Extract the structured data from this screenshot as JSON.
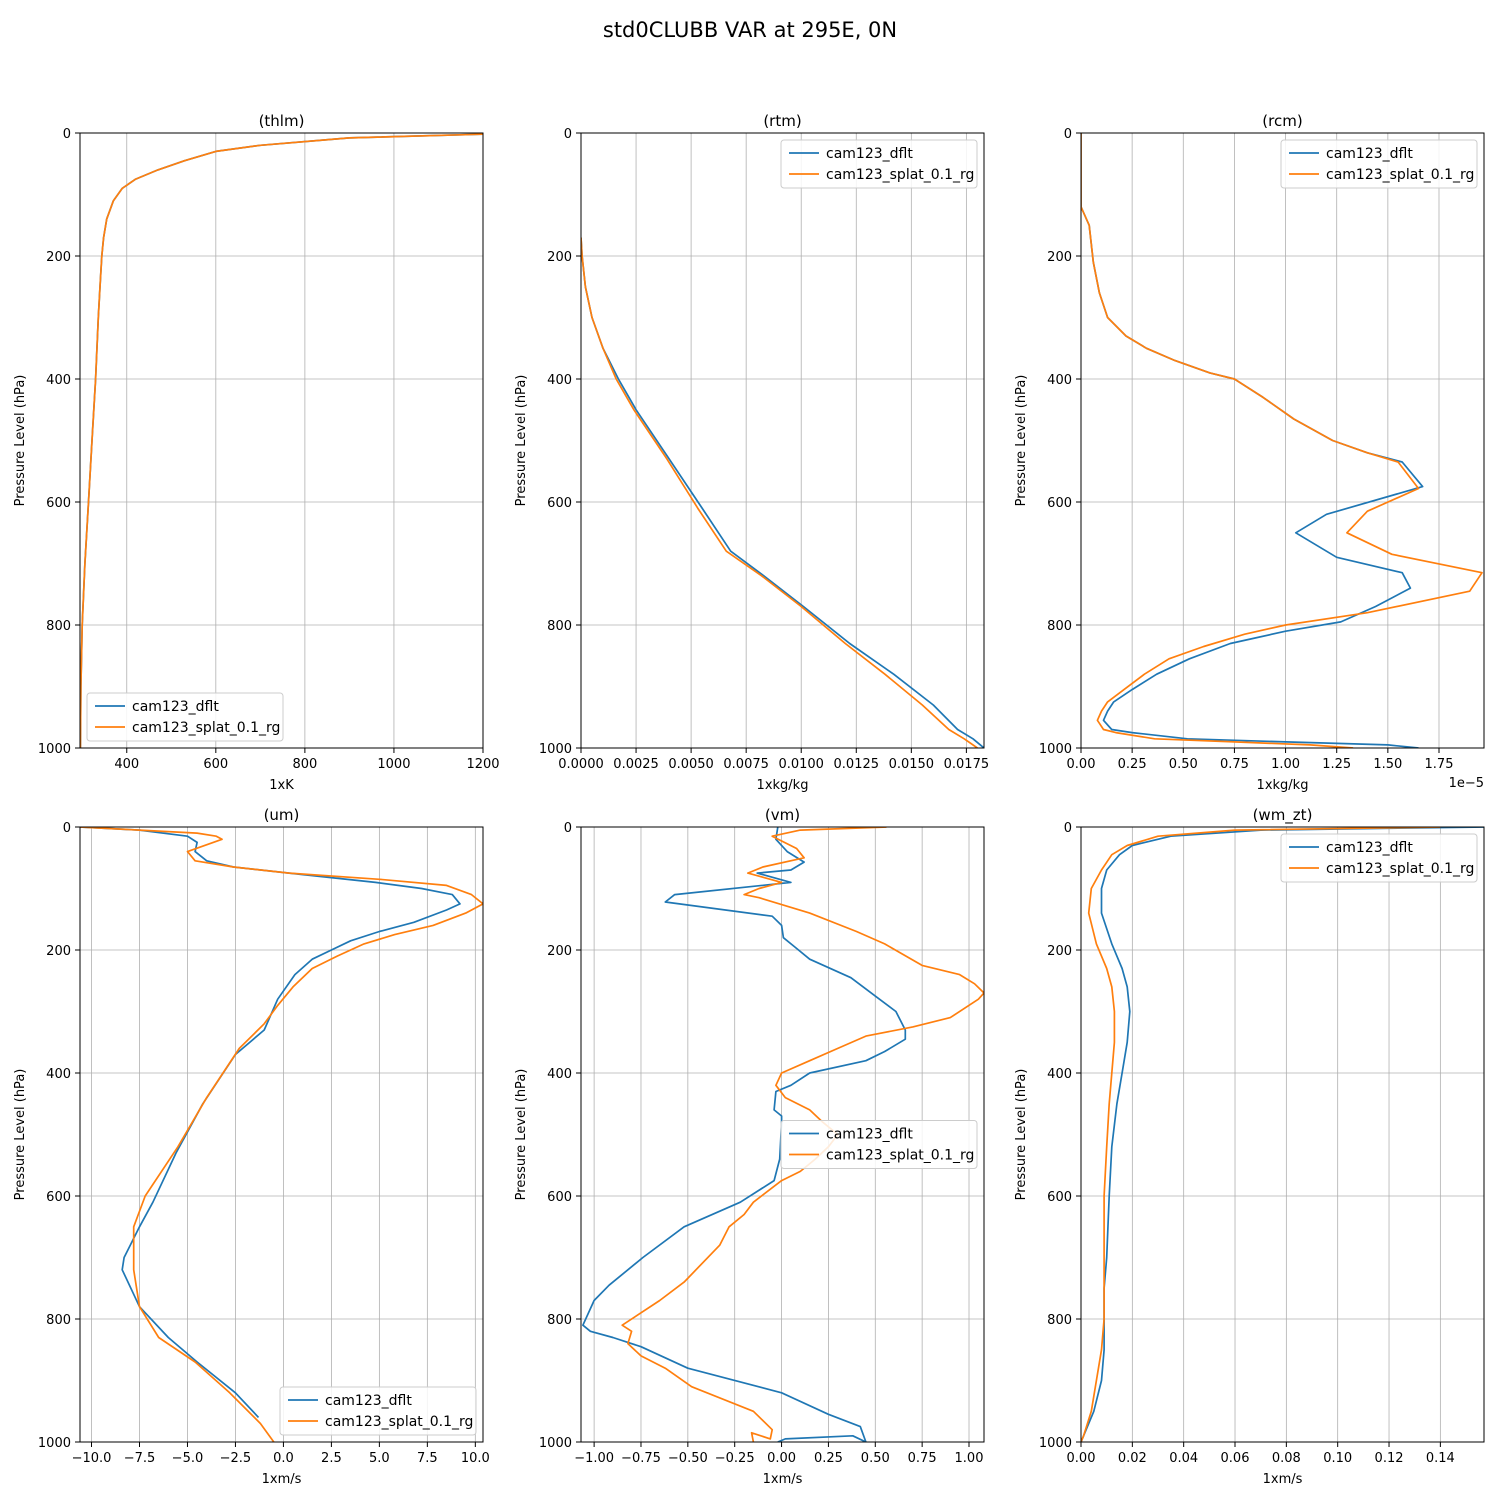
{
  "figure_title": "std0CLUBB VAR at 295E, 0N",
  "colors": {
    "cam123_dflt": "#1f77b4",
    "cam123_splat_0.1_rg": "#ff7f0e"
  },
  "chart_data": [
    {
      "type": "line",
      "title": "(thlm)",
      "xlabel": "1xK",
      "ylabel": "Pressure Level (hPa)",
      "xlim": [
        295,
        1200
      ],
      "ylim": [
        1000,
        0
      ],
      "xticks": [
        400,
        600,
        800,
        1000,
        1200
      ],
      "xtick_labels": [
        "400",
        "600",
        "800",
        "1000",
        "1200"
      ],
      "yticks": [
        0,
        200,
        400,
        600,
        800,
        1000
      ],
      "ytick_labels": [
        "0",
        "200",
        "400",
        "600",
        "800",
        "1000"
      ],
      "offset_text": "",
      "grid": true,
      "legend_loc": "lower-left",
      "series": [
        {
          "name": "cam123_dflt",
          "x": [
            1200,
            900,
            700,
            600,
            530,
            470,
            420,
            390,
            370,
            355,
            348,
            344,
            340,
            336,
            330,
            322,
            314,
            306,
            300,
            297,
            296
          ],
          "y": [
            2,
            8,
            20,
            30,
            45,
            60,
            75,
            90,
            110,
            140,
            170,
            200,
            250,
            300,
            400,
            500,
            600,
            700,
            800,
            900,
            1000
          ]
        },
        {
          "name": "cam123_splat_0.1_rg",
          "x": [
            1200,
            900,
            700,
            600,
            530,
            470,
            420,
            390,
            370,
            355,
            348,
            344,
            340,
            336,
            330,
            322,
            314,
            306,
            300,
            297,
            296
          ],
          "y": [
            2,
            8,
            20,
            30,
            45,
            60,
            75,
            90,
            110,
            140,
            170,
            200,
            250,
            300,
            400,
            500,
            600,
            700,
            800,
            900,
            1000
          ]
        }
      ]
    },
    {
      "type": "line",
      "title": "(rtm)",
      "xlabel": "1xkg/kg",
      "ylabel": "Pressure Level (hPa)",
      "xlim": [
        0,
        0.0183
      ],
      "ylim": [
        1000,
        0
      ],
      "xticks": [
        0,
        0.0025,
        0.005,
        0.0075,
        0.01,
        0.0125,
        0.015,
        0.0175
      ],
      "xtick_labels": [
        "0.0000",
        "0.0025",
        "0.0050",
        "0.0075",
        "0.0100",
        "0.0125",
        "0.0150",
        "0.0175"
      ],
      "yticks": [
        0,
        200,
        400,
        600,
        800,
        1000
      ],
      "ytick_labels": [
        "0",
        "200",
        "400",
        "600",
        "800",
        "1000"
      ],
      "offset_text": "",
      "grid": true,
      "legend_loc": "upper-right",
      "series": [
        {
          "name": "cam123_dflt",
          "x": [
            0.0,
            5e-05,
            0.0002,
            0.0005,
            0.001,
            0.0017,
            0.0025,
            0.004,
            0.0055,
            0.0068,
            0.0083,
            0.0101,
            0.0122,
            0.0142,
            0.016,
            0.0171,
            0.0178,
            0.0183
          ],
          "y": [
            170,
            200,
            250,
            300,
            350,
            400,
            450,
            530,
            610,
            680,
            720,
            770,
            830,
            880,
            930,
            970,
            985,
            1000
          ]
        },
        {
          "name": "cam123_splat_0.1_rg",
          "x": [
            0.0,
            5e-05,
            0.0002,
            0.0005,
            0.001,
            0.0016,
            0.0024,
            0.0039,
            0.0053,
            0.0066,
            0.0082,
            0.01,
            0.012,
            0.0138,
            0.0155,
            0.0167,
            0.0174,
            0.018
          ],
          "y": [
            170,
            200,
            250,
            300,
            350,
            400,
            450,
            530,
            610,
            680,
            720,
            770,
            830,
            880,
            930,
            970,
            985,
            1000
          ]
        }
      ]
    },
    {
      "type": "line",
      "title": "(rcm)",
      "xlabel": "1xkg/kg",
      "ylabel": "Pressure Level (hPa)",
      "xlim": [
        0,
        1.97e-05
      ],
      "ylim": [
        1000,
        0
      ],
      "xticks": [
        0,
        2.5e-06,
        5e-06,
        7.5e-06,
        1e-05,
        1.25e-05,
        1.5e-05,
        1.75e-05
      ],
      "xtick_labels": [
        "0.00",
        "0.25",
        "0.50",
        "0.75",
        "1.00",
        "1.25",
        "1.50",
        "1.75"
      ],
      "yticks": [
        0,
        200,
        400,
        600,
        800,
        1000
      ],
      "ytick_labels": [
        "0",
        "200",
        "400",
        "600",
        "800",
        "1000"
      ],
      "offset_text": "1e−5",
      "grid": true,
      "legend_loc": "upper-right",
      "series": [
        {
          "name": "cam123_dflt",
          "x": [
            0,
            0,
            4e-07,
            6e-07,
            9e-07,
            1.3e-06,
            2.2e-06,
            3.2e-06,
            4.6e-06,
            6.3e-06,
            7.5e-06,
            8.9e-06,
            1.04e-05,
            1.23e-05,
            1.4e-05,
            1.57e-05,
            1.67e-05,
            1.2e-05,
            1.05e-05,
            1.25e-05,
            1.57e-05,
            1.61e-05,
            1.44e-05,
            1.27e-05,
            1e-05,
            7.3e-06,
            5.3e-06,
            3.7e-06,
            2.5e-06,
            1.6e-06,
            1.3e-06,
            1.1e-06,
            1.5e-06,
            2.5e-06,
            5.2e-06,
            1e-05,
            1.5e-05,
            1.65e-05
          ],
          "y": [
            0,
            120,
            150,
            210,
            260,
            300,
            330,
            350,
            370,
            390,
            400,
            430,
            465,
            500,
            520,
            535,
            575,
            620,
            650,
            690,
            715,
            740,
            770,
            795,
            810,
            830,
            855,
            880,
            905,
            925,
            940,
            955,
            970,
            975,
            985,
            990,
            995,
            1000
          ]
        },
        {
          "name": "cam123_splat_0.1_rg",
          "x": [
            0,
            0,
            4e-07,
            6e-07,
            9e-07,
            1.3e-06,
            2.2e-06,
            3.2e-06,
            4.6e-06,
            6.3e-06,
            7.5e-06,
            8.9e-06,
            1.04e-05,
            1.23e-05,
            1.4e-05,
            1.55e-05,
            1.65e-05,
            1.4e-05,
            1.3e-05,
            1.52e-05,
            1.96e-05,
            1.9e-05,
            1.4e-05,
            1e-05,
            8e-06,
            6e-06,
            4.3e-06,
            3.1e-06,
            2.1e-06,
            1.3e-06,
            1e-06,
            8e-07,
            1.1e-06,
            1.7e-06,
            3.6e-06,
            7.5e-06,
            1.12e-05,
            1.33e-05
          ],
          "y": [
            0,
            120,
            150,
            210,
            260,
            300,
            330,
            350,
            370,
            390,
            400,
            430,
            465,
            500,
            520,
            535,
            578,
            615,
            650,
            685,
            715,
            745,
            780,
            800,
            815,
            835,
            855,
            880,
            905,
            925,
            940,
            955,
            970,
            975,
            985,
            990,
            995,
            1000
          ]
        }
      ]
    },
    {
      "type": "line",
      "title": "(um)",
      "xlabel": "1xm/s",
      "ylabel": "Pressure Level (hPa)",
      "xlim": [
        -10.6,
        10.4
      ],
      "ylim": [
        1000,
        0
      ],
      "xticks": [
        -10,
        -7.5,
        -5,
        -2.5,
        0,
        2.5,
        5,
        7.5,
        10
      ],
      "xtick_labels": [
        "−10.0",
        "−7.5",
        "−5.0",
        "−2.5",
        "0.0",
        "2.5",
        "5.0",
        "7.5",
        "10.0"
      ],
      "yticks": [
        0,
        200,
        400,
        600,
        800,
        1000
      ],
      "ytick_labels": [
        "0",
        "200",
        "400",
        "600",
        "800",
        "1000"
      ],
      "offset_text": "",
      "grid": true,
      "legend_loc": "lower-right",
      "series": [
        {
          "name": "cam123_dflt",
          "x": [
            -10.6,
            -7.5,
            -5.0,
            -4.5,
            -4.6,
            -4.0,
            -2.6,
            0.3,
            4.8,
            7.2,
            8.8,
            9.2,
            8.5,
            6.8,
            5.0,
            3.5,
            2.5,
            1.5,
            0.6,
            -0.3,
            -1.0,
            -2.5,
            -4.2,
            -5.6,
            -6.8,
            -7.5,
            -8.3,
            -8.4,
            -7.5,
            -6.0,
            -4.5,
            -2.5,
            -1.3
          ],
          "y": [
            0,
            5,
            15,
            25,
            40,
            55,
            65,
            75,
            90,
            100,
            110,
            125,
            135,
            155,
            170,
            185,
            200,
            215,
            240,
            280,
            330,
            370,
            450,
            530,
            610,
            650,
            700,
            720,
            780,
            830,
            870,
            920,
            960
          ]
        },
        {
          "name": "cam123_splat_0.1_rg",
          "x": [
            -10.6,
            -7.5,
            -4.5,
            -3.5,
            -3.2,
            -5.0,
            -4.6,
            -2.6,
            0.3,
            5.0,
            8.5,
            9.8,
            10.4,
            9.5,
            7.8,
            5.8,
            4.2,
            2.8,
            1.5,
            0.5,
            -0.3,
            -1.0,
            -2.3,
            -4.0,
            -5.5,
            -7.2,
            -7.8,
            -7.8,
            -7.5,
            -6.5,
            -4.6,
            -2.8,
            -1.2,
            -0.5
          ],
          "y": [
            0,
            5,
            10,
            15,
            20,
            40,
            55,
            65,
            75,
            85,
            95,
            110,
            125,
            140,
            160,
            175,
            190,
            210,
            230,
            260,
            290,
            320,
            360,
            440,
            520,
            600,
            650,
            720,
            780,
            830,
            870,
            920,
            970,
            1000
          ]
        }
      ]
    },
    {
      "type": "line",
      "title": "(vm)",
      "xlabel": "1xm/s",
      "ylabel": "Pressure Level (hPa)",
      "xlim": [
        -1.07,
        1.08
      ],
      "ylim": [
        1000,
        0
      ],
      "xticks": [
        -1.0,
        -0.75,
        -0.5,
        -0.25,
        0,
        0.25,
        0.5,
        0.75,
        1.0
      ],
      "xtick_labels": [
        "−1.00",
        "−0.75",
        "−0.50",
        "−0.25",
        "0.00",
        "0.25",
        "0.50",
        "0.75",
        "1.00"
      ],
      "yticks": [
        0,
        200,
        400,
        600,
        800,
        1000
      ],
      "ytick_labels": [
        "0",
        "200",
        "400",
        "600",
        "800",
        "1000"
      ],
      "offset_text": "",
      "grid": true,
      "legend_loc": "center-right",
      "series": [
        {
          "name": "cam123_dflt",
          "x": [
            -0.02,
            -0.03,
            0.03,
            0.12,
            0.05,
            -0.13,
            0.05,
            -0.57,
            -0.62,
            -0.05,
            0.0,
            0.01,
            0.07,
            0.15,
            0.37,
            0.5,
            0.61,
            0.66,
            0.66,
            0.55,
            0.45,
            0.15,
            0.05,
            -0.03,
            -0.04,
            0.0,
            0.0,
            -0.01,
            -0.04,
            -0.22,
            -0.52,
            -0.74,
            -0.92,
            -1.0,
            -1.06,
            -1.02,
            -0.9,
            -0.75,
            -0.5,
            0.0,
            0.25,
            0.42,
            0.45,
            0.38,
            0.02,
            -0.02
          ],
          "y": [
            0,
            20,
            40,
            57,
            70,
            75,
            90,
            110,
            122,
            145,
            160,
            180,
            195,
            215,
            245,
            275,
            300,
            330,
            345,
            365,
            380,
            400,
            420,
            430,
            460,
            470,
            480,
            540,
            575,
            610,
            650,
            700,
            745,
            770,
            810,
            820,
            830,
            845,
            880,
            920,
            955,
            975,
            1000,
            990,
            995,
            1000
          ]
        },
        {
          "name": "cam123_splat_0.1_rg",
          "x": [
            0.56,
            0.1,
            -0.05,
            0.08,
            0.12,
            -0.1,
            -0.18,
            0.0,
            -0.12,
            -0.2,
            -0.12,
            0.15,
            0.4,
            0.55,
            0.75,
            0.95,
            1.03,
            1.08,
            1.05,
            0.9,
            0.7,
            0.45,
            0.3,
            0.15,
            0.0,
            -0.03,
            0.02,
            0.15,
            0.22,
            0.3,
            0.25,
            0.18,
            0.1,
            0.0,
            -0.15,
            -0.2,
            -0.28,
            -0.33,
            -0.52,
            -0.65,
            -0.85,
            -0.8,
            -0.82,
            -0.75,
            -0.62,
            -0.48,
            -0.15,
            -0.05,
            -0.06,
            -0.16,
            -0.15
          ],
          "y": [
            0,
            5,
            15,
            35,
            50,
            65,
            75,
            90,
            100,
            110,
            115,
            140,
            170,
            190,
            225,
            240,
            255,
            270,
            280,
            310,
            325,
            340,
            360,
            380,
            400,
            420,
            440,
            460,
            480,
            500,
            520,
            540,
            560,
            575,
            610,
            630,
            650,
            680,
            740,
            770,
            810,
            820,
            840,
            860,
            880,
            910,
            950,
            980,
            995,
            985,
            1000
          ]
        }
      ]
    },
    {
      "type": "line",
      "title": "(wm_zt)",
      "xlabel": "1xm/s",
      "ylabel": "Pressure Level (hPa)",
      "xlim": [
        0,
        0.157
      ],
      "ylim": [
        1000,
        0
      ],
      "xticks": [
        0,
        0.02,
        0.04,
        0.06,
        0.08,
        0.1,
        0.12,
        0.14
      ],
      "xtick_labels": [
        "0.00",
        "0.02",
        "0.04",
        "0.06",
        "0.08",
        "0.10",
        "0.12",
        "0.14"
      ],
      "yticks": [
        0,
        200,
        400,
        600,
        800,
        1000
      ],
      "ytick_labels": [
        "0",
        "200",
        "400",
        "600",
        "800",
        "1000"
      ],
      "offset_text": "",
      "grid": true,
      "legend_loc": "upper-right",
      "series": [
        {
          "name": "cam123_dflt",
          "x": [
            0.157,
            0.07,
            0.035,
            0.02,
            0.015,
            0.01,
            0.008,
            0.008,
            0.012,
            0.016,
            0.018,
            0.019,
            0.018,
            0.016,
            0.014,
            0.012,
            0.011,
            0.01,
            0.009,
            0.009,
            0.009,
            0.008,
            0.005,
            0.001,
            0.0
          ],
          "y": [
            0,
            5,
            15,
            30,
            45,
            70,
            100,
            140,
            190,
            230,
            260,
            300,
            350,
            400,
            450,
            520,
            600,
            700,
            750,
            800,
            850,
            900,
            950,
            990,
            1000
          ]
        },
        {
          "name": "cam123_splat_0.1_rg",
          "x": [
            0.14,
            0.06,
            0.03,
            0.018,
            0.012,
            0.008,
            0.004,
            0.003,
            0.006,
            0.01,
            0.012,
            0.013,
            0.013,
            0.012,
            0.011,
            0.01,
            0.009,
            0.009,
            0.009,
            0.009,
            0.008,
            0.006,
            0.004,
            0.001,
            0.0
          ],
          "y": [
            0,
            5,
            15,
            30,
            45,
            70,
            100,
            140,
            190,
            230,
            260,
            300,
            350,
            400,
            450,
            520,
            600,
            700,
            750,
            800,
            850,
            900,
            950,
            990,
            1000
          ]
        }
      ]
    }
  ]
}
